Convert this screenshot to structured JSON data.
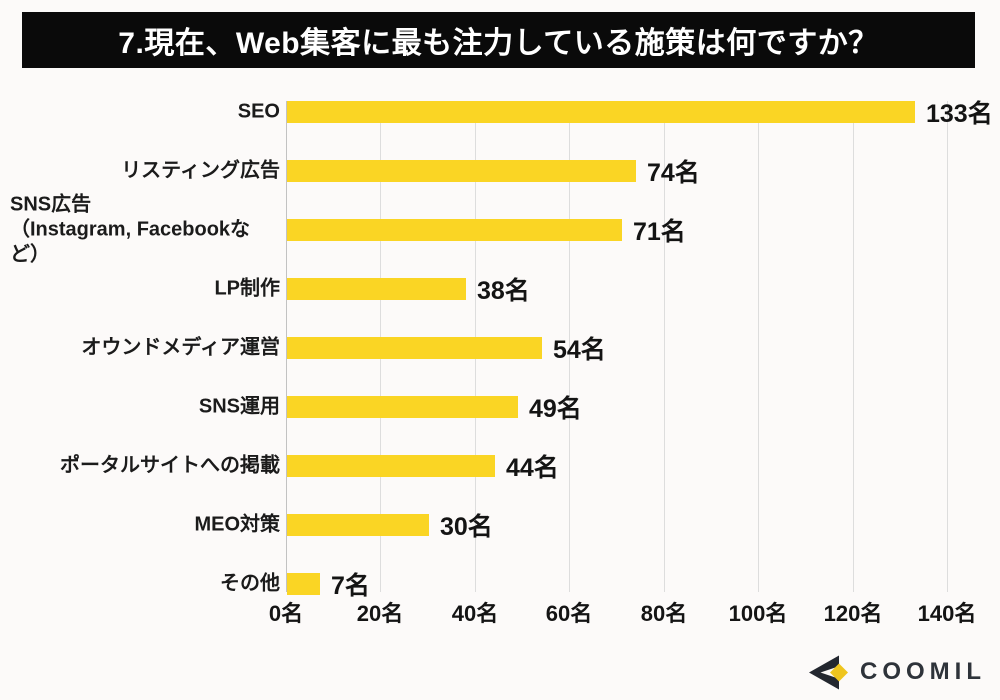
{
  "page": {
    "background": "#FCFAF9"
  },
  "header": {
    "title": "7.現在、Web集客に最も注力している施策は何ですか？",
    "bg_color": "#0A0A0A",
    "text_color": "#FFFFFF"
  },
  "chart_data": {
    "type": "bar",
    "orientation": "horizontal",
    "title": "7.現在、Web集客に最も注力している施策は何ですか？",
    "unit": "名",
    "categories": [
      "SEO",
      "リスティング広告",
      "SNS広告\n（Instagram, Facebookなど）",
      "LP制作",
      "オウンドメディア運営",
      "SNS運用",
      "ポータルサイトへの掲載",
      "MEO対策",
      "その他"
    ],
    "values": [
      133,
      74,
      71,
      38,
      54,
      49,
      44,
      30,
      7
    ],
    "value_labels": [
      "133名",
      "74名",
      "71名",
      "38名",
      "54名",
      "49名",
      "44名",
      "30名",
      "7名"
    ],
    "x_tick_values": [
      0,
      20,
      40,
      60,
      80,
      100,
      120,
      140
    ],
    "x_tick_labels": [
      "0名",
      "20名",
      "40名",
      "60名",
      "80名",
      "100名",
      "120名",
      "140名"
    ],
    "xlim": [
      0,
      140
    ],
    "grid": true,
    "legend": "none",
    "bar_color": "#FAD524",
    "grid_color": "#DDDDDD",
    "axis_line_color": "#C2C2C2",
    "text_color": "#1B1B1B"
  },
  "footer": {
    "brand": "COOMIL",
    "logo_icon": "coomil-chevron-diamond-icon",
    "logo_dark_color": "#23272F",
    "logo_yellow_color": "#EFC51E",
    "text_color": "#2E333A"
  }
}
